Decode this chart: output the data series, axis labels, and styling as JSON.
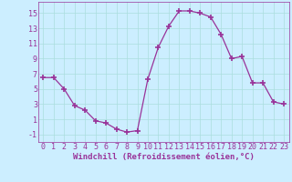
{
  "x": [
    0,
    1,
    2,
    3,
    4,
    5,
    6,
    7,
    8,
    9,
    10,
    11,
    12,
    13,
    14,
    15,
    16,
    17,
    18,
    19,
    20,
    21,
    22,
    23
  ],
  "y": [
    6.5,
    6.5,
    5.0,
    2.8,
    2.2,
    0.8,
    0.5,
    -0.3,
    -0.7,
    -0.5,
    6.3,
    10.5,
    13.3,
    15.3,
    15.3,
    15.0,
    14.5,
    12.2,
    9.0,
    9.3,
    5.8,
    5.8,
    3.3,
    3.0
  ],
  "line_color": "#993399",
  "marker": "+",
  "marker_size": 4,
  "marker_lw": 1.2,
  "bg_color": "#cceeff",
  "grid_color": "#aadddd",
  "xlabel": "Windchill (Refroidissement éolien,°C)",
  "xlabel_fontsize": 6.5,
  "tick_fontsize": 6,
  "xlim": [
    -0.5,
    23.5
  ],
  "ylim": [
    -2,
    16.5
  ],
  "yticks": [
    -1,
    1,
    3,
    5,
    7,
    9,
    11,
    13,
    15
  ],
  "xticks": [
    0,
    1,
    2,
    3,
    4,
    5,
    6,
    7,
    8,
    9,
    10,
    11,
    12,
    13,
    14,
    15,
    16,
    17,
    18,
    19,
    20,
    21,
    22,
    23
  ]
}
